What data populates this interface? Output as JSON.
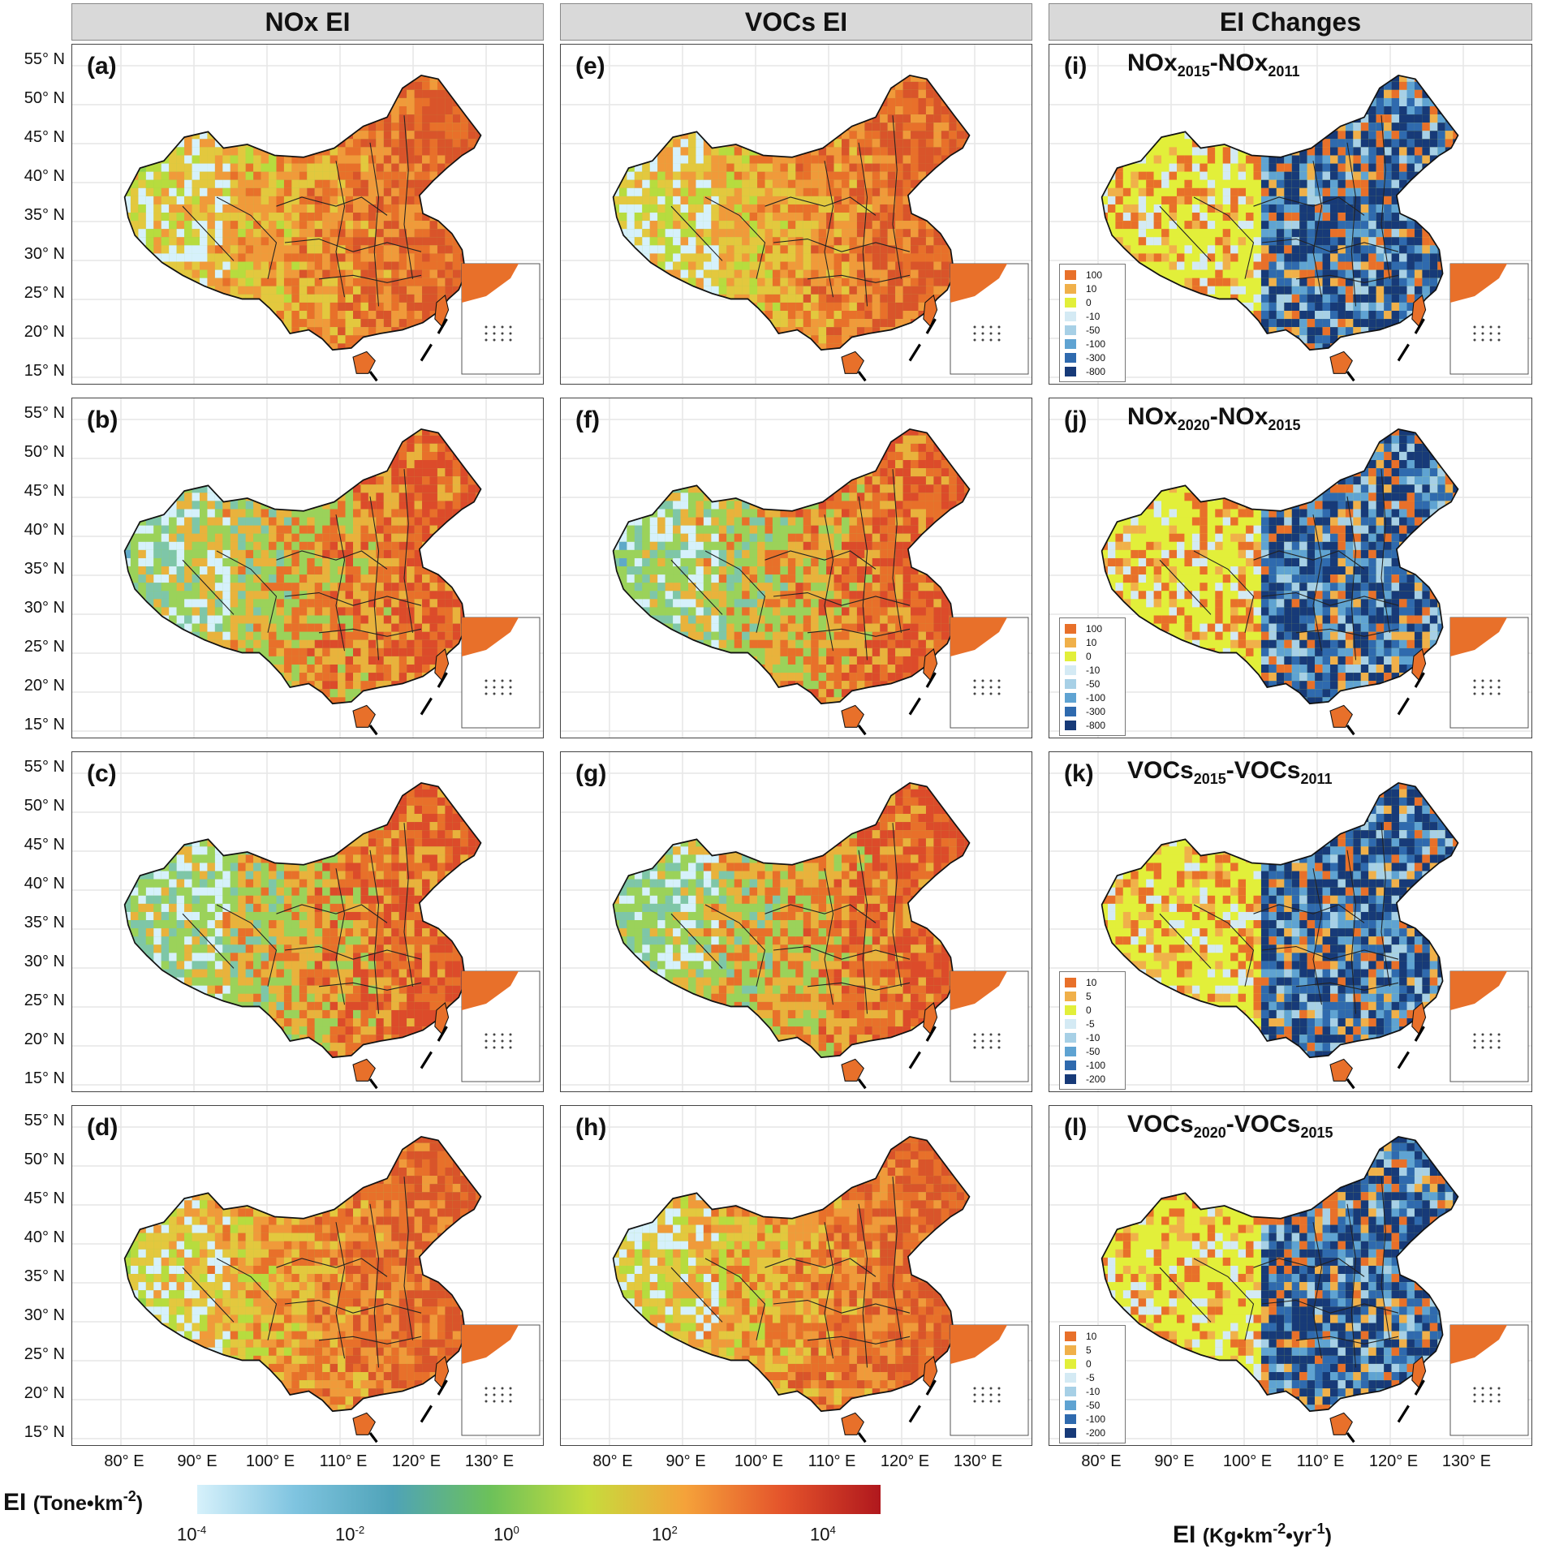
{
  "headers": {
    "nox": "NOx EI",
    "vocs": "VOCs EI",
    "changes": "EI Changes"
  },
  "y_ticks": [
    "55° N",
    "50° N",
    "45° N",
    "40° N",
    "35° N",
    "30° N",
    "25° N",
    "20° N",
    "15° N"
  ],
  "x_ticks": [
    "80° E",
    "90° E",
    "100° E",
    "110° E",
    "120° E",
    "130° E"
  ],
  "panels": [
    {
      "tag": "(a)"
    },
    {
      "tag": "(b)"
    },
    {
      "tag": "(c)"
    },
    {
      "tag": "(d)"
    },
    {
      "tag": "(e)"
    },
    {
      "tag": "(f)"
    },
    {
      "tag": "(g)"
    },
    {
      "tag": "(h)"
    },
    {
      "tag": "(i)",
      "species": "NOx",
      "y1": "2015",
      "y2": "2011"
    },
    {
      "tag": "(j)",
      "species": "NOx",
      "y1": "2020",
      "y2": "2015"
    },
    {
      "tag": "(k)",
      "species": "VOCs",
      "y1": "2015",
      "y2": "2011"
    },
    {
      "tag": "(l)",
      "species": "VOCs",
      "y1": "2020",
      "y2": "2015"
    }
  ],
  "legend_nox": [
    "100",
    "10",
    "0",
    "-10",
    "-50",
    "-100",
    "-300",
    "-800"
  ],
  "legend_vocs": [
    "10",
    "5",
    "0",
    "-5",
    "-10",
    "-50",
    "-100",
    "-200"
  ],
  "legend_colors": [
    "#e8702a",
    "#f0b04a",
    "#e2ef3a",
    "#d4eaf4",
    "#a7d0e6",
    "#5fa3d2",
    "#2f6aae",
    "#173a78"
  ],
  "colorbar": {
    "title_main": "EI",
    "title_unit": "(Tone•km",
    "title_exp": "-2",
    "title_close": ")",
    "tick_base": "10",
    "ticks_exp": [
      "-4",
      "-2",
      "0",
      "2",
      "4"
    ],
    "colors": [
      "#d6f1fb",
      "#7fc4e0",
      "#4fa3b8",
      "#6cc15a",
      "#c6dc3c",
      "#f5a23a",
      "#e4532b",
      "#b0181d"
    ]
  },
  "right_unit": {
    "main": "EI",
    "unit": "(Kg•km",
    "exp1": "-2",
    "mid": "•yr",
    "exp2": "-1",
    "close": ")"
  }
}
